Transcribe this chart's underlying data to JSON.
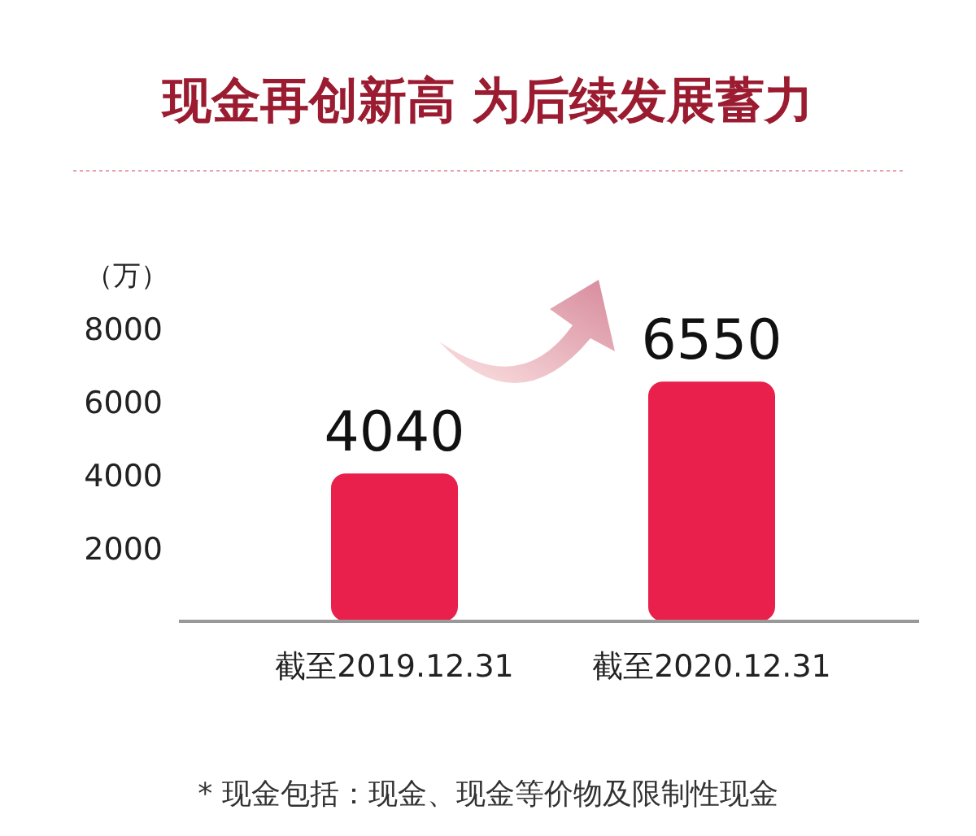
{
  "chart_data": {
    "type": "bar",
    "title": "现金再创新高  为后续发展蓄力",
    "ylabel": "（万）",
    "categories": [
      "截至2019.12.31",
      "截至2020.12.31"
    ],
    "values": [
      4040,
      6550
    ],
    "color": "#e8204b",
    "ylim": [
      0,
      8000
    ],
    "yticks": [
      2000,
      4000,
      6000,
      8000
    ],
    "data_labels": true,
    "grid": false,
    "annotations": [
      "* 现金包括：现金、现金等价物及限制性现金"
    ]
  }
}
